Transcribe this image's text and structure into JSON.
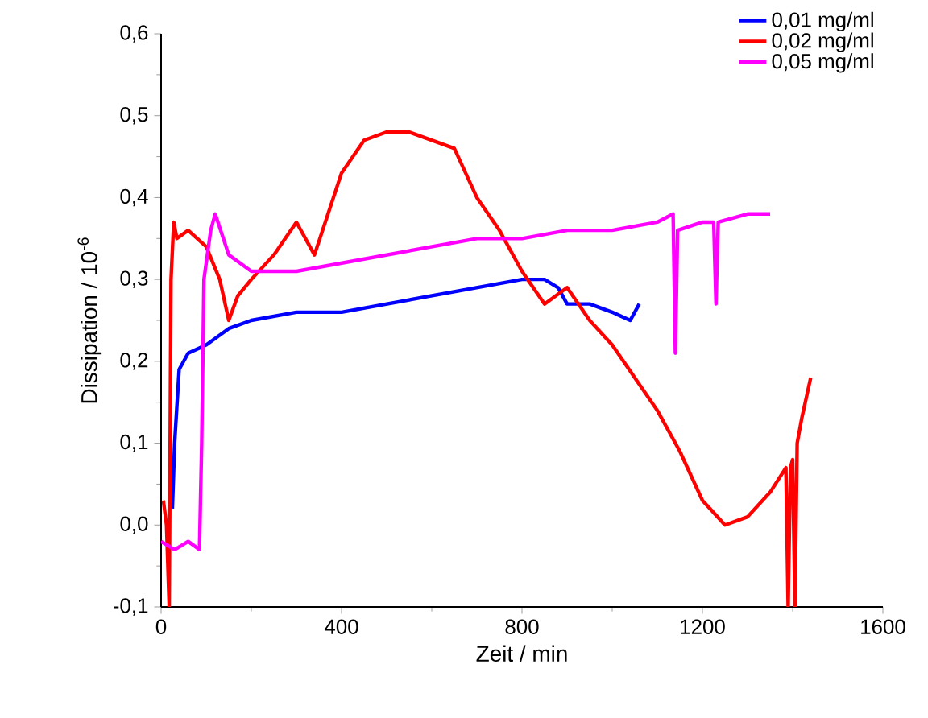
{
  "chart_data": {
    "type": "line",
    "xlabel": "Zeit / min",
    "ylabel": "Dissipation / 10$^{-6}$",
    "xlim": [
      0,
      1600
    ],
    "ylim": [
      -0.1,
      0.6
    ],
    "xticks": [
      0,
      400,
      800,
      1200,
      1600
    ],
    "yticks": [
      {
        "value": -0.1,
        "label": "-0,1"
      },
      {
        "value": 0.0,
        "label": "0,0"
      },
      {
        "value": 0.1,
        "label": "0,1"
      },
      {
        "value": 0.2,
        "label": "0,2"
      },
      {
        "value": 0.3,
        "label": "0,3"
      },
      {
        "value": 0.4,
        "label": "0,4"
      },
      {
        "value": 0.5,
        "label": "0,5"
      },
      {
        "value": 0.6,
        "label": "0,6"
      }
    ],
    "grid": false,
    "legend": "top right",
    "marker": "none",
    "line_style": "solid",
    "series": [
      {
        "name": "0,01 mg/ml",
        "color": "#0000ff",
        "x": [
          25,
          30,
          40,
          60,
          100,
          150,
          200,
          300,
          400,
          500,
          600,
          700,
          800,
          850,
          880,
          900,
          950,
          1000,
          1040,
          1060
        ],
        "values": [
          0.02,
          0.1,
          0.19,
          0.21,
          0.22,
          0.24,
          0.25,
          0.26,
          0.26,
          0.27,
          0.28,
          0.29,
          0.3,
          0.3,
          0.29,
          0.27,
          0.27,
          0.26,
          0.25,
          0.27
        ]
      },
      {
        "name": "0,02 mg/ml",
        "color": "#ff0000",
        "x": [
          5,
          12,
          18,
          22,
          28,
          35,
          60,
          100,
          130,
          150,
          170,
          200,
          250,
          300,
          340,
          370,
          400,
          450,
          500,
          550,
          600,
          650,
          700,
          750,
          800,
          850,
          900,
          950,
          1000,
          1050,
          1100,
          1150,
          1200,
          1250,
          1300,
          1350,
          1385,
          1390,
          1395,
          1400,
          1405,
          1410,
          1420,
          1440
        ],
        "values": [
          0.03,
          0.0,
          -0.1,
          0.3,
          0.37,
          0.35,
          0.36,
          0.34,
          0.3,
          0.25,
          0.28,
          0.3,
          0.33,
          0.37,
          0.33,
          0.38,
          0.43,
          0.47,
          0.48,
          0.48,
          0.47,
          0.46,
          0.4,
          0.36,
          0.31,
          0.27,
          0.29,
          0.25,
          0.22,
          0.18,
          0.14,
          0.09,
          0.03,
          0.0,
          0.01,
          0.04,
          0.07,
          -0.1,
          0.07,
          0.08,
          -0.1,
          0.1,
          0.13,
          0.18
        ]
      },
      {
        "name": "0,05 mg/ml",
        "color": "#ff00ff",
        "x": [
          0,
          30,
          60,
          85,
          90,
          95,
          110,
          120,
          150,
          200,
          300,
          400,
          500,
          600,
          700,
          800,
          900,
          1000,
          1100,
          1135,
          1140,
          1145,
          1200,
          1225,
          1230,
          1235,
          1300,
          1350
        ],
        "values": [
          -0.02,
          -0.03,
          -0.02,
          -0.03,
          0.1,
          0.3,
          0.36,
          0.38,
          0.33,
          0.31,
          0.31,
          0.32,
          0.33,
          0.34,
          0.35,
          0.35,
          0.36,
          0.36,
          0.37,
          0.38,
          0.21,
          0.36,
          0.37,
          0.37,
          0.27,
          0.37,
          0.38,
          0.38
        ]
      }
    ]
  }
}
